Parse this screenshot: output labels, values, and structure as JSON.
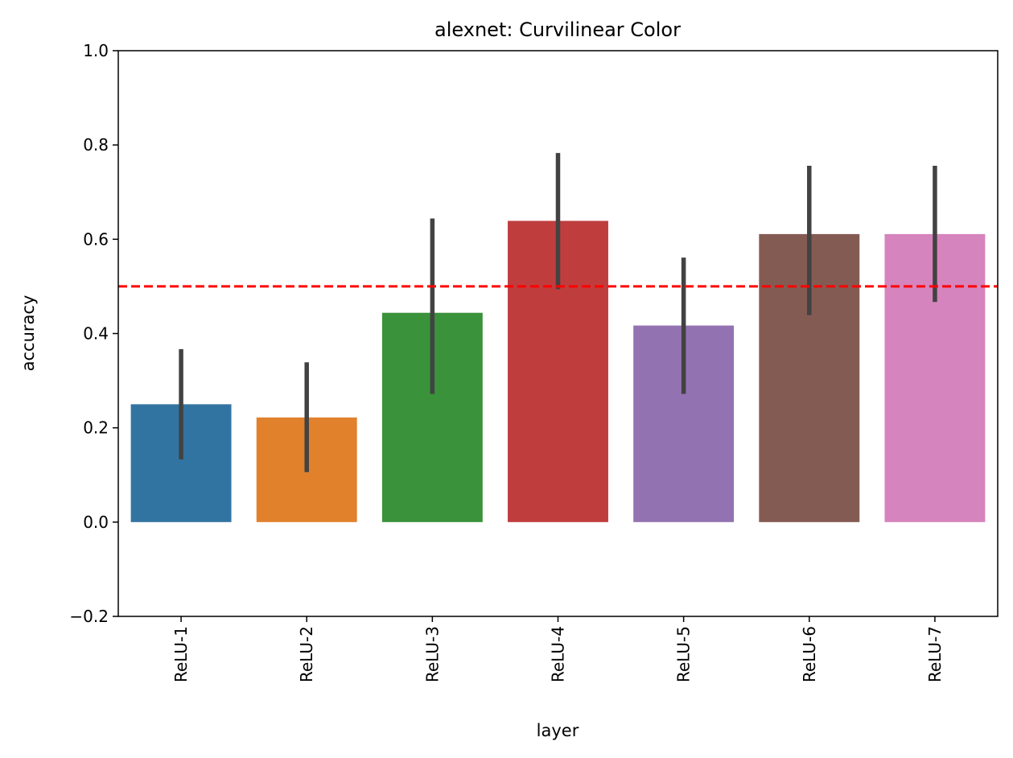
{
  "chart_data": {
    "type": "bar",
    "title": "alexnet: Curvilinear Color",
    "xlabel": "layer",
    "ylabel": "accuracy",
    "ylim": [
      -0.2,
      1.0
    ],
    "yticks": [
      "−0.2",
      "0.0",
      "0.2",
      "0.4",
      "0.6",
      "0.8",
      "1.0"
    ],
    "ytick_values": [
      -0.2,
      0.0,
      0.2,
      0.4,
      0.6,
      0.8,
      1.0
    ],
    "categories": [
      "ReLU-1",
      "ReLU-2",
      "ReLU-3",
      "ReLU-4",
      "ReLU-5",
      "ReLU-6",
      "ReLU-7"
    ],
    "values": [
      0.25,
      0.222,
      0.444,
      0.639,
      0.417,
      0.611,
      0.611
    ],
    "error_low": [
      0.133,
      0.106,
      0.272,
      0.494,
      0.272,
      0.439,
      0.467
    ],
    "error_high": [
      0.367,
      0.339,
      0.644,
      0.783,
      0.561,
      0.756,
      0.756
    ],
    "colors": [
      "#3274a1",
      "#e1812c",
      "#3a923a",
      "#c03d3e",
      "#9372b2",
      "#845b53",
      "#d684bd"
    ],
    "errorbar_color": "#424242",
    "reference_line": {
      "y": 0.5,
      "color": "#ff0000",
      "style": "dashed"
    },
    "grid": false,
    "legend": "none"
  }
}
